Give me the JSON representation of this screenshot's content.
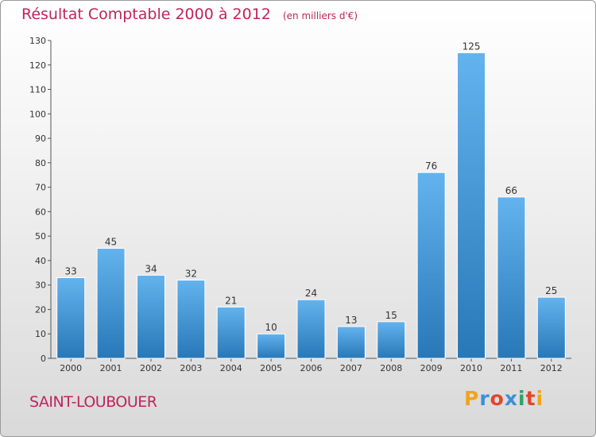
{
  "title": {
    "main": "Résultat Comptable 2000 à 2012",
    "unit": "(en milliers d'€)"
  },
  "footer": {
    "town": "SAINT-LOUBOUER",
    "brand_letters": [
      "P",
      "r",
      "o",
      "x",
      "i",
      "t",
      "i"
    ],
    "brand_colors": [
      "#f2a31b",
      "#3b8fd8",
      "#e2452e",
      "#3b8fd8",
      "#2aa36a",
      "#e2452e",
      "#f2a31b"
    ]
  },
  "colors": {
    "title": "#c0245b",
    "bar_top": "#63b3ee",
    "bar_bottom": "#2878b8",
    "axis": "#555555"
  },
  "chart_data": {
    "type": "bar",
    "title": "Résultat Comptable 2000 à 2012",
    "subtitle": "(en milliers d'€)",
    "xlabel": "",
    "ylabel": "",
    "categories": [
      "2000",
      "2001",
      "2002",
      "2003",
      "2004",
      "2005",
      "2006",
      "2007",
      "2008",
      "2009",
      "2010",
      "2011",
      "2012"
    ],
    "values": [
      33,
      45,
      34,
      32,
      21,
      10,
      24,
      13,
      15,
      76,
      125,
      66,
      25
    ],
    "ylim": [
      0,
      130
    ],
    "yticks": [
      0,
      10,
      20,
      30,
      40,
      50,
      60,
      70,
      80,
      90,
      100,
      110,
      120,
      130
    ],
    "grid": false,
    "legend": "none"
  }
}
